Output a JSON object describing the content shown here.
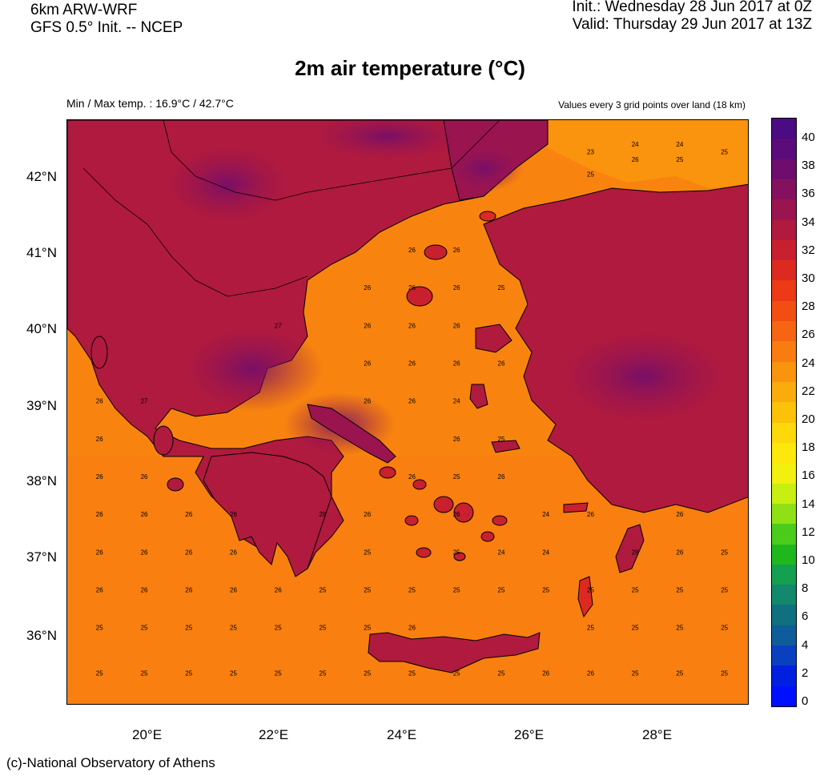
{
  "header": {
    "model": "6km ARW-WRF",
    "init_source": "GFS 0.5° Init. -- NCEP",
    "init_time": "Init.:  Wednesday 28 Jun 2017 at 0Z",
    "valid_time": "Valid: Thursday 29 Jun 2017 at 13Z"
  },
  "title": "2m air temperature (°C)",
  "minmax": "Min / Max temp. : 16.9°C / 42.7°C",
  "note": "Values every 3 grid points over land (18 km)",
  "credit": "(c)-National Observatory of Athens",
  "axes": {
    "lat_labels": [
      "42°N",
      "41°N",
      "40°N",
      "39°N",
      "38°N",
      "37°N",
      "36°N"
    ],
    "lon_labels": [
      "20°E",
      "22°E",
      "24°E",
      "26°E",
      "28°E"
    ]
  },
  "colorbar": {
    "labels": [
      "40",
      "38",
      "36",
      "34",
      "32",
      "30",
      "28",
      "26",
      "24",
      "22",
      "20",
      "18",
      "16",
      "14",
      "12",
      "10",
      "8",
      "6",
      "4",
      "2",
      "0"
    ],
    "colors": [
      "#4b0b82",
      "#5b0c7a",
      "#6e0d6e",
      "#84105e",
      "#9a1450",
      "#b01a3e",
      "#c8202e",
      "#dc2a20",
      "#ec3a16",
      "#f24e14",
      "#f66512",
      "#f87c10",
      "#fa930e",
      "#fbab0c",
      "#fcc20a",
      "#fdd80a",
      "#fde80c",
      "#f2f00e",
      "#c8ee12",
      "#8fe014",
      "#4ccc1a",
      "#1eb81e",
      "#14a050",
      "#12886c",
      "#107080",
      "#0e5c9a",
      "#0a40c0",
      "#0020e0",
      "#0010ff"
    ]
  },
  "map_data": {
    "sea_label_values": [
      {
        "lon": 19.2,
        "lat": 39.0,
        "v": "26"
      },
      {
        "lon": 19.9,
        "lat": 39.0,
        "v": "27"
      },
      {
        "lon": 19.2,
        "lat": 38.5,
        "v": "26"
      },
      {
        "lon": 19.2,
        "lat": 38.0,
        "v": "26"
      },
      {
        "lon": 19.9,
        "lat": 38.0,
        "v": "26"
      },
      {
        "lon": 19.2,
        "lat": 37.5,
        "v": "26"
      },
      {
        "lon": 19.9,
        "lat": 37.5,
        "v": "26"
      },
      {
        "lon": 20.6,
        "lat": 37.5,
        "v": "26"
      },
      {
        "lon": 21.3,
        "lat": 37.5,
        "v": "26"
      },
      {
        "lon": 19.2,
        "lat": 37.0,
        "v": "26"
      },
      {
        "lon": 19.9,
        "lat": 37.0,
        "v": "26"
      },
      {
        "lon": 20.6,
        "lat": 37.0,
        "v": "26"
      },
      {
        "lon": 21.3,
        "lat": 37.0,
        "v": "26"
      },
      {
        "lon": 19.2,
        "lat": 36.5,
        "v": "26"
      },
      {
        "lon": 19.9,
        "lat": 36.5,
        "v": "26"
      },
      {
        "lon": 20.6,
        "lat": 36.5,
        "v": "26"
      },
      {
        "lon": 21.3,
        "lat": 36.5,
        "v": "26"
      },
      {
        "lon": 22.0,
        "lat": 36.5,
        "v": "26"
      },
      {
        "lon": 22.7,
        "lat": 36.5,
        "v": "25"
      },
      {
        "lon": 19.2,
        "lat": 36.0,
        "v": "25"
      },
      {
        "lon": 19.9,
        "lat": 36.0,
        "v": "25"
      },
      {
        "lon": 20.6,
        "lat": 36.0,
        "v": "25"
      },
      {
        "lon": 21.3,
        "lat": 36.0,
        "v": "25"
      },
      {
        "lon": 22.0,
        "lat": 36.0,
        "v": "25"
      },
      {
        "lon": 22.7,
        "lat": 36.0,
        "v": "25"
      },
      {
        "lon": 19.2,
        "lat": 35.4,
        "v": "25"
      },
      {
        "lon": 19.9,
        "lat": 35.4,
        "v": "25"
      },
      {
        "lon": 20.6,
        "lat": 35.4,
        "v": "25"
      },
      {
        "lon": 21.3,
        "lat": 35.4,
        "v": "25"
      },
      {
        "lon": 22.0,
        "lat": 35.4,
        "v": "25"
      },
      {
        "lon": 22.7,
        "lat": 35.4,
        "v": "25"
      },
      {
        "lon": 23.4,
        "lat": 35.4,
        "v": "25"
      },
      {
        "lon": 24.1,
        "lat": 35.4,
        "v": "25"
      },
      {
        "lon": 24.8,
        "lat": 35.4,
        "v": "25"
      },
      {
        "lon": 25.5,
        "lat": 35.4,
        "v": "25"
      },
      {
        "lon": 26.2,
        "lat": 35.4,
        "v": "26"
      },
      {
        "lon": 26.9,
        "lat": 35.4,
        "v": "26"
      },
      {
        "lon": 27.6,
        "lat": 35.4,
        "v": "25"
      },
      {
        "lon": 28.3,
        "lat": 35.4,
        "v": "25"
      },
      {
        "lon": 29.0,
        "lat": 35.4,
        "v": "25"
      },
      {
        "lon": 23.4,
        "lat": 36.0,
        "v": "25"
      },
      {
        "lon": 24.1,
        "lat": 36.0,
        "v": "26"
      },
      {
        "lon": 26.9,
        "lat": 36.0,
        "v": "25"
      },
      {
        "lon": 27.6,
        "lat": 36.0,
        "v": "25"
      },
      {
        "lon": 28.3,
        "lat": 36.0,
        "v": "25"
      },
      {
        "lon": 29.0,
        "lat": 36.0,
        "v": "25"
      },
      {
        "lon": 23.4,
        "lat": 36.5,
        "v": "25"
      },
      {
        "lon": 24.1,
        "lat": 36.5,
        "v": "25"
      },
      {
        "lon": 24.8,
        "lat": 36.5,
        "v": "25"
      },
      {
        "lon": 25.5,
        "lat": 36.5,
        "v": "25"
      },
      {
        "lon": 26.2,
        "lat": 36.5,
        "v": "25"
      },
      {
        "lon": 26.9,
        "lat": 36.5,
        "v": "25"
      },
      {
        "lon": 27.6,
        "lat": 36.5,
        "v": "25"
      },
      {
        "lon": 28.3,
        "lat": 36.5,
        "v": "25"
      },
      {
        "lon": 29.0,
        "lat": 36.5,
        "v": "25"
      },
      {
        "lon": 23.4,
        "lat": 37.0,
        "v": "25"
      },
      {
        "lon": 24.8,
        "lat": 37.0,
        "v": "25"
      },
      {
        "lon": 25.5,
        "lat": 37.0,
        "v": "24"
      },
      {
        "lon": 26.2,
        "lat": 37.0,
        "v": "24"
      },
      {
        "lon": 27.6,
        "lat": 37.0,
        "v": "28"
      },
      {
        "lon": 28.3,
        "lat": 37.0,
        "v": "26"
      },
      {
        "lon": 29.0,
        "lat": 37.0,
        "v": "25"
      },
      {
        "lon": 22.7,
        "lat": 37.5,
        "v": "28"
      },
      {
        "lon": 23.4,
        "lat": 37.5,
        "v": "26"
      },
      {
        "lon": 24.8,
        "lat": 37.5,
        "v": "26"
      },
      {
        "lon": 26.2,
        "lat": 37.5,
        "v": "24"
      },
      {
        "lon": 26.9,
        "lat": 37.5,
        "v": "26"
      },
      {
        "lon": 28.3,
        "lat": 37.5,
        "v": "26"
      },
      {
        "lon": 24.1,
        "lat": 38.0,
        "v": "26"
      },
      {
        "lon": 24.8,
        "lat": 38.0,
        "v": "25"
      },
      {
        "lon": 25.5,
        "lat": 38.0,
        "v": "26"
      },
      {
        "lon": 24.8,
        "lat": 38.5,
        "v": "26"
      },
      {
        "lon": 25.5,
        "lat": 38.5,
        "v": "25"
      },
      {
        "lon": 23.4,
        "lat": 39.0,
        "v": "26"
      },
      {
        "lon": 24.1,
        "lat": 39.0,
        "v": "26"
      },
      {
        "lon": 24.8,
        "lat": 39.0,
        "v": "24"
      },
      {
        "lon": 23.4,
        "lat": 39.5,
        "v": "26"
      },
      {
        "lon": 24.1,
        "lat": 39.5,
        "v": "26"
      },
      {
        "lon": 24.8,
        "lat": 39.5,
        "v": "26"
      },
      {
        "lon": 25.5,
        "lat": 39.5,
        "v": "26"
      },
      {
        "lon": 23.4,
        "lat": 40.0,
        "v": "26"
      },
      {
        "lon": 24.1,
        "lat": 40.0,
        "v": "26"
      },
      {
        "lon": 24.8,
        "lat": 40.0,
        "v": "26"
      },
      {
        "lon": 23.4,
        "lat": 40.5,
        "v": "26"
      },
      {
        "lon": 24.1,
        "lat": 40.5,
        "v": "26"
      },
      {
        "lon": 24.8,
        "lat": 40.5,
        "v": "26"
      },
      {
        "lon": 25.5,
        "lat": 40.5,
        "v": "25"
      },
      {
        "lon": 24.1,
        "lat": 41.0,
        "v": "26"
      },
      {
        "lon": 24.8,
        "lat": 41.0,
        "v": "26"
      },
      {
        "lon": 22.0,
        "lat": 40.0,
        "v": "27"
      },
      {
        "lon": 26.9,
        "lat": 42.0,
        "v": "25"
      },
      {
        "lon": 27.6,
        "lat": 42.2,
        "v": "26"
      },
      {
        "lon": 28.3,
        "lat": 42.2,
        "v": "25"
      },
      {
        "lon": 29.0,
        "lat": 42.3,
        "v": "25"
      },
      {
        "lon": 26.9,
        "lat": 42.3,
        "v": "23"
      },
      {
        "lon": 27.6,
        "lat": 42.4,
        "v": "24"
      },
      {
        "lon": 28.3,
        "lat": 42.4,
        "v": "24"
      }
    ]
  }
}
